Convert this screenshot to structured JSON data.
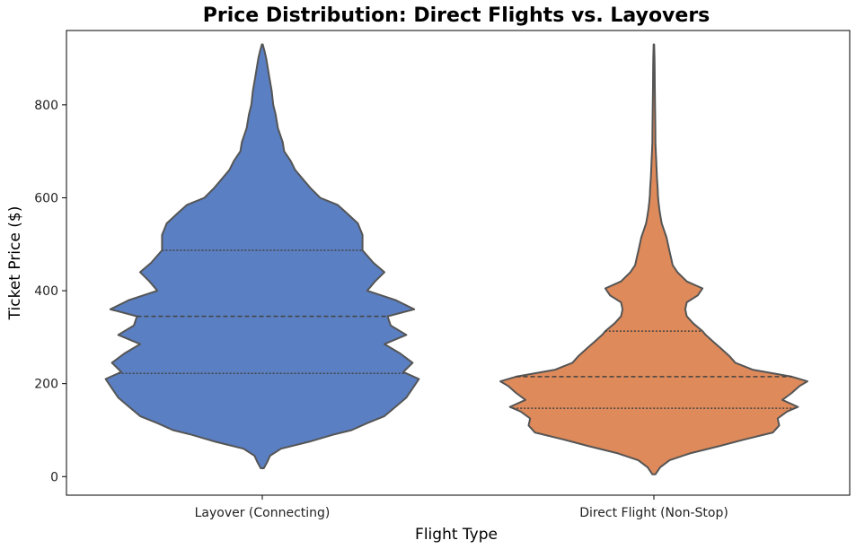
{
  "chart_data": {
    "type": "violin",
    "title": "Price Distribution: Direct Flights vs. Layovers",
    "xlabel": "Flight Type",
    "ylabel": "Ticket Price ($)",
    "ylim": [
      -40,
      960
    ],
    "yticks": [
      0,
      200,
      400,
      600,
      800
    ],
    "grid": false,
    "categories": [
      "Layover (Connecting)",
      "Direct Flight (Non-Stop)"
    ],
    "series": [
      {
        "category": "Layover (Connecting)",
        "color": "#5a7fc2",
        "min": 18,
        "max": 930,
        "quartiles": [
          222,
          345,
          487
        ],
        "density_profile": [
          [
            18,
            0.01
          ],
          [
            30,
            0.03
          ],
          [
            45,
            0.05
          ],
          [
            60,
            0.12
          ],
          [
            75,
            0.3
          ],
          [
            90,
            0.45
          ],
          [
            100,
            0.57
          ],
          [
            115,
            0.67
          ],
          [
            130,
            0.78
          ],
          [
            150,
            0.85
          ],
          [
            170,
            0.92
          ],
          [
            190,
            0.96
          ],
          [
            210,
            1.0
          ],
          [
            225,
            0.9
          ],
          [
            245,
            0.96
          ],
          [
            265,
            0.88
          ],
          [
            285,
            0.78
          ],
          [
            305,
            0.92
          ],
          [
            325,
            0.82
          ],
          [
            345,
            0.8
          ],
          [
            360,
            0.97
          ],
          [
            380,
            0.85
          ],
          [
            400,
            0.67
          ],
          [
            420,
            0.72
          ],
          [
            440,
            0.78
          ],
          [
            460,
            0.71
          ],
          [
            487,
            0.64
          ],
          [
            520,
            0.64
          ],
          [
            545,
            0.61
          ],
          [
            570,
            0.53
          ],
          [
            585,
            0.48
          ],
          [
            600,
            0.37
          ],
          [
            620,
            0.31
          ],
          [
            640,
            0.26
          ],
          [
            660,
            0.21
          ],
          [
            680,
            0.18
          ],
          [
            700,
            0.14
          ],
          [
            720,
            0.13
          ],
          [
            750,
            0.1
          ],
          [
            780,
            0.085
          ],
          [
            800,
            0.07
          ],
          [
            830,
            0.06
          ],
          [
            860,
            0.045
          ],
          [
            880,
            0.035
          ],
          [
            900,
            0.025
          ],
          [
            915,
            0.015
          ],
          [
            930,
            0.003
          ]
        ]
      },
      {
        "category": "Direct Flight (Non-Stop)",
        "color": "#de8a5a",
        "min": 5,
        "max": 930,
        "quartiles": [
          147,
          215,
          313
        ],
        "density_profile": [
          [
            5,
            0.01
          ],
          [
            20,
            0.04
          ],
          [
            35,
            0.1
          ],
          [
            50,
            0.23
          ],
          [
            65,
            0.41
          ],
          [
            80,
            0.58
          ],
          [
            95,
            0.76
          ],
          [
            110,
            0.8
          ],
          [
            125,
            0.79
          ],
          [
            140,
            0.85
          ],
          [
            150,
            0.92
          ],
          [
            165,
            0.82
          ],
          [
            180,
            0.88
          ],
          [
            195,
            0.93
          ],
          [
            205,
            0.98
          ],
          [
            215,
            0.88
          ],
          [
            230,
            0.63
          ],
          [
            245,
            0.52
          ],
          [
            260,
            0.48
          ],
          [
            275,
            0.43
          ],
          [
            290,
            0.38
          ],
          [
            305,
            0.33
          ],
          [
            313,
            0.31
          ],
          [
            330,
            0.25
          ],
          [
            345,
            0.21
          ],
          [
            360,
            0.2
          ],
          [
            375,
            0.21
          ],
          [
            390,
            0.28
          ],
          [
            405,
            0.31
          ],
          [
            420,
            0.21
          ],
          [
            440,
            0.15
          ],
          [
            455,
            0.12
          ],
          [
            470,
            0.11
          ],
          [
            485,
            0.1
          ],
          [
            500,
            0.09
          ],
          [
            515,
            0.08
          ],
          [
            530,
            0.065
          ],
          [
            545,
            0.05
          ],
          [
            560,
            0.042
          ],
          [
            575,
            0.035
          ],
          [
            590,
            0.03
          ],
          [
            605,
            0.026
          ],
          [
            620,
            0.024
          ],
          [
            640,
            0.02
          ],
          [
            660,
            0.017
          ],
          [
            680,
            0.015
          ],
          [
            700,
            0.012
          ],
          [
            720,
            0.01
          ],
          [
            750,
            0.009
          ],
          [
            780,
            0.008
          ],
          [
            810,
            0.007
          ],
          [
            840,
            0.006
          ],
          [
            870,
            0.005
          ],
          [
            900,
            0.004
          ],
          [
            930,
            0.002
          ]
        ]
      }
    ]
  }
}
